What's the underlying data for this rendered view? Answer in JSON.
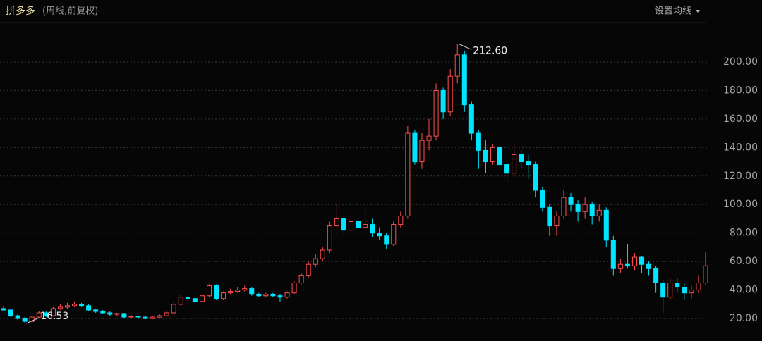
{
  "header": {
    "name": "拼多多",
    "period": "(周线,前复权)",
    "menu": "设置均线"
  },
  "chart_data": {
    "type": "candlestick",
    "up_color": "#ff4d4f",
    "down_color": "#00e5ff",
    "grid": true,
    "ylim": [
      6.2,
      223.7
    ],
    "yticks": [
      {
        "value": 20,
        "label": "20.00"
      },
      {
        "value": 40,
        "label": "40.00"
      },
      {
        "value": 60,
        "label": "60.00"
      },
      {
        "value": 80,
        "label": "80.00"
      },
      {
        "value": 100,
        "label": "100.00"
      },
      {
        "value": 120,
        "label": "120.00"
      },
      {
        "value": 140,
        "label": "140.00"
      },
      {
        "value": 160,
        "label": "160.00"
      },
      {
        "value": 180,
        "label": "180.00"
      },
      {
        "value": 200,
        "label": "200.00"
      }
    ],
    "high_label": "212.60",
    "low_label": "16.53",
    "open": [
      27,
      26,
      22,
      20,
      18,
      21,
      24,
      22,
      27,
      28,
      29,
      30,
      29,
      26,
      25,
      24,
      23,
      23.5,
      21,
      21.5,
      21,
      20,
      21,
      22,
      24,
      30,
      35,
      34,
      32,
      36,
      43,
      34,
      38,
      39,
      40,
      41,
      37,
      36,
      37,
      36,
      35,
      38,
      45,
      50,
      58,
      62,
      68,
      85,
      90,
      82,
      88,
      84,
      86,
      80,
      78,
      72,
      86,
      92,
      150,
      130,
      145,
      148,
      180,
      165,
      190,
      205,
      170,
      150,
      138,
      130,
      140,
      128,
      122,
      135,
      130,
      128,
      110,
      98,
      85,
      92,
      105,
      100,
      95,
      100,
      92,
      96,
      75,
      55,
      58,
      57,
      63,
      58,
      55,
      45,
      35,
      45,
      42,
      38,
      40,
      45
    ],
    "high": [
      29,
      27,
      23,
      21,
      22,
      25,
      25,
      28,
      30,
      31,
      32,
      31,
      30,
      27,
      26,
      25,
      24,
      24,
      22.5,
      22,
      21.5,
      22,
      23,
      25,
      31,
      37,
      36,
      35,
      37,
      44,
      44,
      39,
      41,
      42,
      43,
      42,
      38,
      38,
      38,
      37,
      39,
      46,
      52,
      60,
      65,
      70,
      88,
      100,
      92,
      95,
      92,
      98,
      90,
      84,
      80,
      88,
      95,
      155,
      152,
      150,
      160,
      185,
      182,
      195,
      212.6,
      208,
      172,
      152,
      145,
      142,
      143,
      132,
      143,
      138,
      135,
      130,
      112,
      100,
      95,
      110,
      108,
      103,
      105,
      102,
      100,
      98,
      78,
      62,
      72,
      66,
      64,
      60,
      57,
      47,
      48,
      48,
      45,
      43,
      50,
      67
    ],
    "low": [
      25,
      21,
      19,
      16.53,
      17.5,
      20,
      21,
      21.5,
      26,
      27,
      28,
      28,
      25,
      24,
      23,
      22,
      22,
      20.5,
      20,
      20,
      19.5,
      19.5,
      20.5,
      21.5,
      23.5,
      29,
      33,
      31,
      31,
      35,
      33,
      33,
      37,
      38,
      39,
      36,
      35,
      35,
      35,
      32,
      34,
      37,
      44,
      49,
      56,
      60,
      66,
      83,
      80,
      80,
      82,
      82,
      77,
      75,
      69,
      71,
      84,
      90,
      128,
      125,
      138,
      145,
      160,
      162,
      185,
      165,
      145,
      125,
      122,
      128,
      125,
      115,
      120,
      125,
      118,
      105,
      95,
      78,
      78,
      90,
      95,
      88,
      90,
      86,
      88,
      70,
      50,
      52,
      55,
      54,
      52,
      50,
      38,
      24,
      33,
      38,
      33,
      34,
      38,
      44
    ],
    "close": [
      26,
      22,
      20,
      18,
      21,
      24,
      22,
      27,
      28,
      29,
      30,
      29,
      26,
      25,
      24,
      23,
      23.5,
      21,
      21.5,
      21,
      20,
      21,
      22,
      24,
      30,
      35,
      34,
      32,
      36,
      43,
      34,
      38,
      39,
      40,
      41,
      37,
      36,
      37,
      36,
      35,
      38,
      45,
      50,
      58,
      62,
      68,
      85,
      90,
      82,
      88,
      84,
      86,
      80,
      78,
      72,
      86,
      92,
      150,
      130,
      145,
      148,
      180,
      165,
      190,
      205,
      170,
      150,
      138,
      130,
      140,
      128,
      122,
      135,
      130,
      128,
      110,
      98,
      85,
      92,
      105,
      100,
      95,
      100,
      92,
      96,
      75,
      55,
      58,
      57,
      63,
      58,
      55,
      45,
      35,
      45,
      42,
      38,
      40,
      45,
      57
    ]
  }
}
